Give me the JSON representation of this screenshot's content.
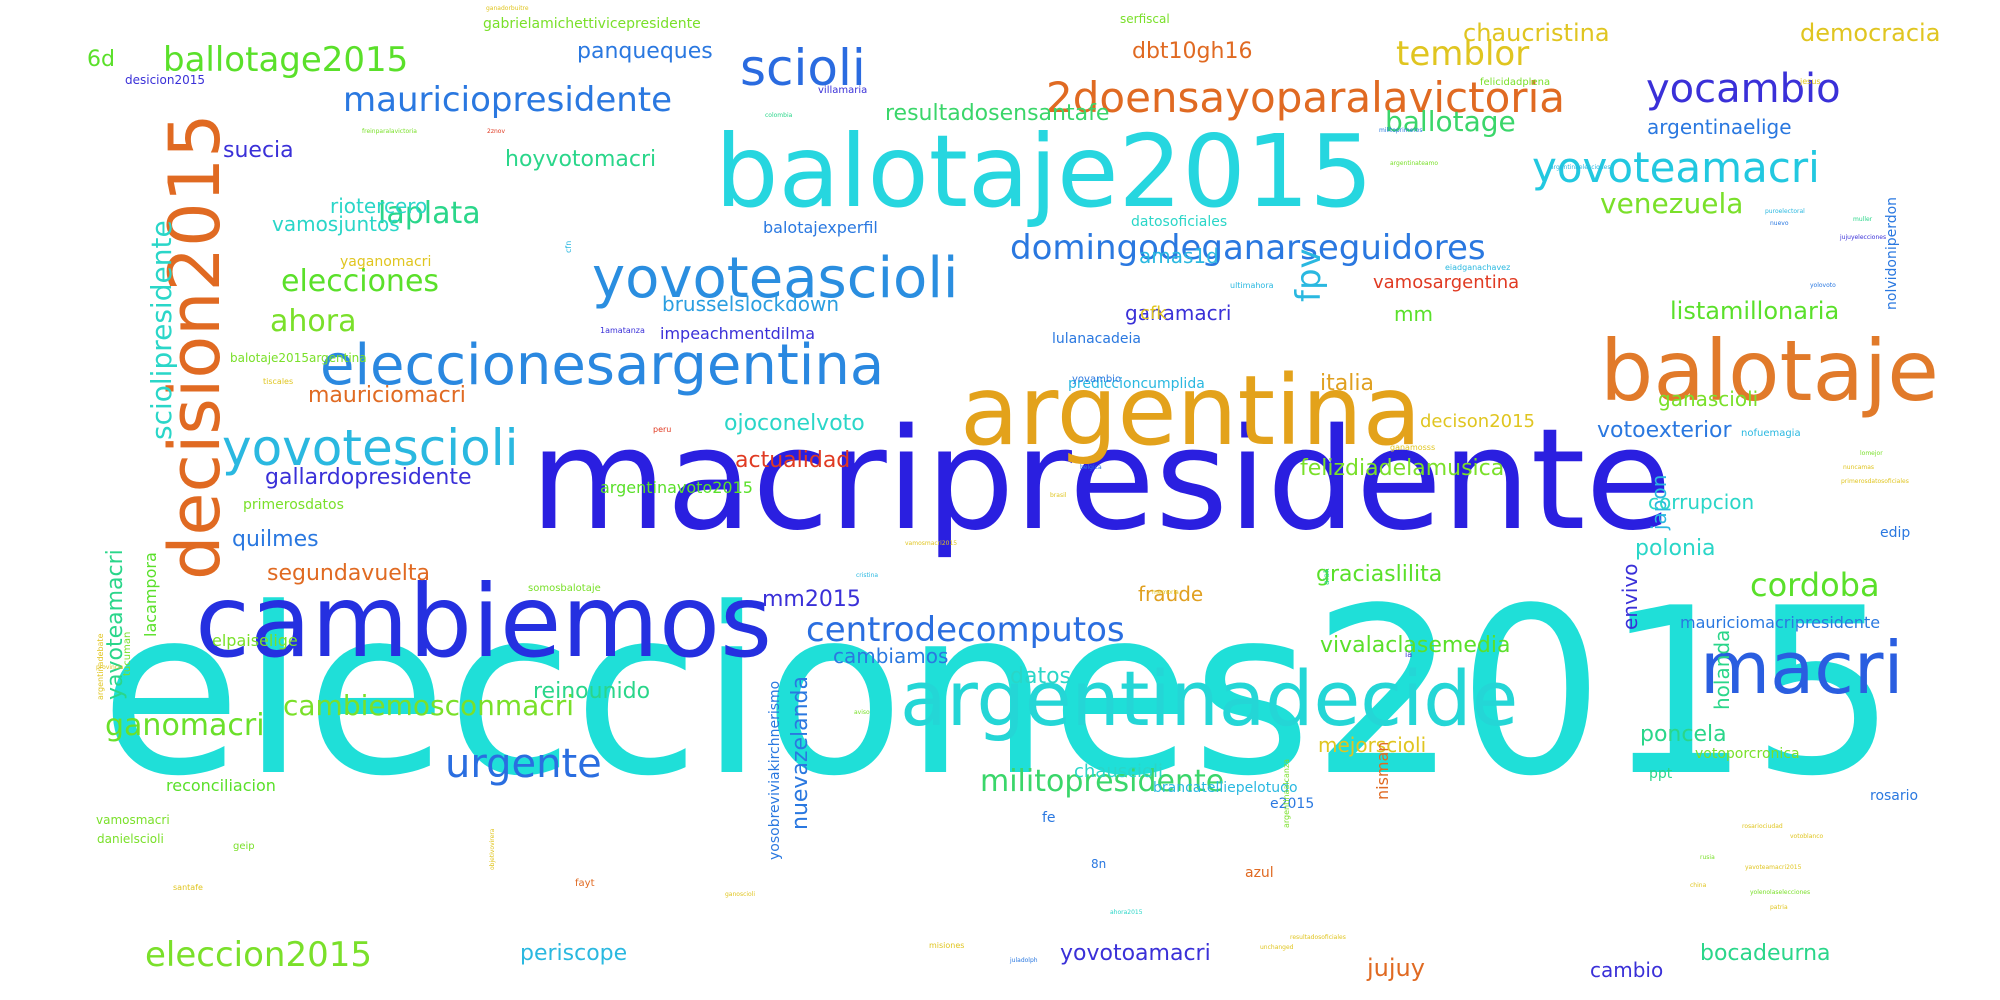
{
  "words": [
    {
      "text": "elecciones2015",
      "color": "#1fdfd8"
    },
    {
      "text": "macripresidente",
      "color": "#2a1fe0"
    },
    {
      "text": "cambiemos",
      "color": "#2530e0"
    },
    {
      "text": "balotaje2015",
      "color": "#26d6df"
    },
    {
      "text": "argentina",
      "color": "#e3a21b"
    },
    {
      "text": "balotaje",
      "color": "#e17a2a"
    },
    {
      "text": "argentinadecide",
      "color": "#24d6d6"
    },
    {
      "text": "decision2015",
      "color": "#e06a22"
    },
    {
      "text": "macri",
      "color": "#2a5ee0"
    },
    {
      "text": "eleccionesargentina",
      "color": "#2a88e0"
    },
    {
      "text": "yovoteascioli",
      "color": "#2a8ee0"
    },
    {
      "text": "scioli",
      "color": "#2a6be0"
    },
    {
      "text": "yovotescioli",
      "color": "#2ab8e0"
    },
    {
      "text": "2doensayoparalavictoria",
      "color": "#e06a22"
    },
    {
      "text": "yovoteamacri",
      "color": "#22c8e0"
    },
    {
      "text": "yocambio",
      "color": "#3a30d8"
    },
    {
      "text": "mauriciopresidente",
      "color": "#2a78e0"
    },
    {
      "text": "ballotage2015",
      "color": "#5ae02a"
    },
    {
      "text": "domingodeganarseguidores",
      "color": "#2a78e0"
    },
    {
      "text": "urgente",
      "color": "#2a6ee0"
    },
    {
      "text": "centrodecomputos",
      "color": "#2a6ee0"
    },
    {
      "text": "temblor",
      "color": "#e0c520"
    },
    {
      "text": "laplata",
      "color": "#2ad68a"
    },
    {
      "text": "elecciones",
      "color": "#5ae02a"
    },
    {
      "text": "ahora",
      "color": "#7ae02a"
    },
    {
      "text": "fpv",
      "color": "#2ab8e0"
    },
    {
      "text": "eleccion2015",
      "color": "#7ae02a"
    },
    {
      "text": "ganomacri",
      "color": "#6ae02a"
    },
    {
      "text": "cambiemosconmacri",
      "color": "#7ae02a"
    },
    {
      "text": "militopresidente",
      "color": "#3ad66a"
    },
    {
      "text": "cordoba",
      "color": "#5ae02a"
    },
    {
      "text": "sciolipresidente",
      "color": "#2ad6c8"
    },
    {
      "text": "venezuela",
      "color": "#7ae02a"
    },
    {
      "text": "ballotage",
      "color": "#3ad66a"
    },
    {
      "text": "listamillonaria",
      "color": "#5ae02a"
    },
    {
      "text": "democracia",
      "color": "#e0c520"
    },
    {
      "text": "chaucristina",
      "color": "#e0c520"
    },
    {
      "text": "panqueques",
      "color": "#2a78e0"
    },
    {
      "text": "dbt10gh16",
      "color": "#e06a22"
    },
    {
      "text": "6d",
      "color": "#5ae02a"
    },
    {
      "text": "yavoteamacri",
      "color": "#2ad68a"
    },
    {
      "text": "suecia",
      "color": "#3a30d8"
    },
    {
      "text": "hoyvotomacri",
      "color": "#2ad68a"
    },
    {
      "text": "resultadosensantafe",
      "color": "#3ad66a"
    },
    {
      "text": "argentinaelige",
      "color": "#2a78e0"
    },
    {
      "text": "vamosjuntos",
      "color": "#2ad6c8"
    },
    {
      "text": "riotercero",
      "color": "#2ad6c8"
    },
    {
      "text": "brusselslockdown",
      "color": "#2a9ee0"
    },
    {
      "text": "amas1d",
      "color": "#2ab8e0"
    },
    {
      "text": "ganamacri",
      "color": "#3a30d8"
    },
    {
      "text": "italia",
      "color": "#e0a020"
    },
    {
      "text": "mauriciomacri",
      "color": "#e06a22"
    },
    {
      "text": "ojoconelvoto",
      "color": "#2ad6c8"
    },
    {
      "text": "actualidad",
      "color": "#e03a22"
    },
    {
      "text": "gallardopresidente",
      "color": "#3a30d8"
    },
    {
      "text": "felizdiadelamusica",
      "color": "#7ae02a"
    },
    {
      "text": "votoexterior",
      "color": "#2a78e0"
    },
    {
      "text": "segundavuelta",
      "color": "#e06a22"
    },
    {
      "text": "quilmes",
      "color": "#2a78e0"
    },
    {
      "text": "mm2015",
      "color": "#3a30d8"
    },
    {
      "text": "polonia",
      "color": "#2ad6c8"
    },
    {
      "text": "graciaslilita",
      "color": "#5ae02a"
    },
    {
      "text": "vivalaclasemedia",
      "color": "#5ae02a"
    },
    {
      "text": "fraude",
      "color": "#e0a020"
    },
    {
      "text": "datos",
      "color": "#2ad6c8"
    },
    {
      "text": "cambiamos",
      "color": "#2a78e0"
    },
    {
      "text": "reinounido",
      "color": "#2ad68a"
    },
    {
      "text": "nuevazelanda",
      "color": "#2a78e0"
    },
    {
      "text": "mejorscioli",
      "color": "#e0c520"
    },
    {
      "text": "poncela",
      "color": "#2ad68a"
    },
    {
      "text": "periscope",
      "color": "#2ab8e0"
    },
    {
      "text": "yovotoamacri",
      "color": "#3a30d8"
    },
    {
      "text": "jujuy",
      "color": "#e06a22"
    },
    {
      "text": "cambio",
      "color": "#3a30d8"
    },
    {
      "text": "bocadeurna",
      "color": "#2ad68a"
    },
    {
      "text": "japon",
      "color": "#2ab8e0"
    },
    {
      "text": "corrupcion",
      "color": "#2ad6c8"
    },
    {
      "text": "envivo",
      "color": "#3a30d8"
    },
    {
      "text": "holanda",
      "color": "#2ad68a"
    },
    {
      "text": "ganascioli",
      "color": "#7ae02a"
    },
    {
      "text": "mm",
      "color": "#5ae02a"
    },
    {
      "text": "cfk",
      "color": "#e0c520"
    },
    {
      "text": "vamosargentina",
      "color": "#e03a22"
    },
    {
      "text": "decison2015",
      "color": "#e0c520"
    },
    {
      "text": "lacampora",
      "color": "#5ae02a"
    },
    {
      "text": "elpaiselige",
      "color": "#7ae02a"
    },
    {
      "text": "reconciliacion",
      "color": "#5ae02a"
    },
    {
      "text": "argentinavoto2015",
      "color": "#5ae02a"
    },
    {
      "text": "primerosdatos",
      "color": "#7ae02a"
    },
    {
      "text": "impeachmentdilma",
      "color": "#3a30d8"
    },
    {
      "text": "lulanacadeia",
      "color": "#2a78e0"
    },
    {
      "text": "yaganomacri",
      "color": "#e0c520"
    },
    {
      "text": "balotajexperfil",
      "color": "#2a78e0"
    },
    {
      "text": "datosoficiales",
      "color": "#2ad6c8"
    },
    {
      "text": "mauriciomacripresidente",
      "color": "#2a78e0"
    },
    {
      "text": "nisman",
      "color": "#e06a22"
    },
    {
      "text": "chauscioli",
      "color": "#2ad6c8"
    },
    {
      "text": "yosobreviviakirchnerismo",
      "color": "#2a78e0"
    },
    {
      "text": "nolvidoniperdon",
      "color": "#2a78e0"
    },
    {
      "text": "gabrielamichettivicepresidente",
      "color": "#7ae02a"
    },
    {
      "text": "ppt",
      "color": "#2ad68a"
    },
    {
      "text": "rosario",
      "color": "#2a78e0"
    },
    {
      "text": "azul",
      "color": "#e06a22"
    },
    {
      "text": "e2015",
      "color": "#2a78e0"
    },
    {
      "text": "prediccioncumplida",
      "color": "#2ab8e0"
    },
    {
      "text": "edip",
      "color": "#2a78e0"
    },
    {
      "text": "votoporcronica",
      "color": "#7ae02a"
    },
    {
      "text": "brancatelliepelotudo",
      "color": "#2ab8e0"
    },
    {
      "text": "desicion2015",
      "color": "#3a30d8"
    },
    {
      "text": "balotaje2015argentina",
      "color": "#7ae02a"
    },
    {
      "text": "vamosmacri",
      "color": "#7ae02a"
    },
    {
      "text": "danielscioli",
      "color": "#7ae02a"
    },
    {
      "text": "tucuman",
      "color": "#7ae02a"
    },
    {
      "text": "fe",
      "color": "#2a78e0"
    },
    {
      "text": "8n",
      "color": "#2a78e0"
    },
    {
      "text": "somosbalotaje",
      "color": "#7ae02a"
    },
    {
      "text": "serfiscal",
      "color": "#7ae02a"
    },
    {
      "text": "felicidadplena",
      "color": "#7ae02a"
    },
    {
      "text": "villamaria",
      "color": "#3a30d8"
    },
    {
      "text": "misiones",
      "color": "#e0c520"
    },
    {
      "text": "santafe",
      "color": "#e0c520"
    },
    {
      "text": "geip",
      "color": "#7ae02a"
    },
    {
      "text": "fayt",
      "color": "#e06a22"
    },
    {
      "text": "1amatanza",
      "color": "#3a30d8"
    },
    {
      "text": "tiscales",
      "color": "#e0c520"
    },
    {
      "text": "cfn",
      "color": "#2ab8e0"
    },
    {
      "text": "yovambio",
      "color": "#2a78e0"
    },
    {
      "text": "nofuemagia",
      "color": "#2ab8e0"
    },
    {
      "text": "ganamosss",
      "color": "#e0c520"
    },
    {
      "text": "argentinaalcanza",
      "color": "#7ae02a"
    },
    {
      "text": "argentinadebate",
      "color": "#e0c520"
    },
    {
      "text": "ultimahora",
      "color": "#2ab8e0"
    },
    {
      "text": "jesus",
      "color": "#e0c520"
    },
    {
      "text": "peru",
      "color": "#e03a22"
    },
    {
      "text": "brasil",
      "color": "#e0c520"
    },
    {
      "text": "belgica",
      "color": "#2a78e0"
    },
    {
      "text": "memoria",
      "color": "#e0c520"
    },
    {
      "text": "ia",
      "color": "#3a30d8"
    },
    {
      "text": "rusia",
      "color": "#7ae02a"
    },
    {
      "text": "china",
      "color": "#e0c520"
    },
    {
      "text": "nuevo",
      "color": "#2a78e0"
    },
    {
      "text": "2znov",
      "color": "#e03a22"
    },
    {
      "text": "ganoscioli",
      "color": "#e0c520"
    },
    {
      "text": "objetivovirera",
      "color": "#e0c520"
    },
    {
      "text": "freinparalavictoria",
      "color": "#7ae02a"
    },
    {
      "text": "argentinateamo",
      "color": "#7ae02a"
    },
    {
      "text": "puroelectoral",
      "color": "#2ab8e0"
    },
    {
      "text": "primerosdatosoficiales",
      "color": "#e0c520"
    },
    {
      "text": "yolenolaselecciones",
      "color": "#7ae02a"
    },
    {
      "text": "ganadorbuitre",
      "color": "#e0c520"
    },
    {
      "text": "muller",
      "color": "#2ad68a"
    },
    {
      "text": "colombia",
      "color": "#2ad68a"
    },
    {
      "text": "argentinaelecciones",
      "color": "#2ab8e0"
    },
    {
      "text": "eiadganachavez",
      "color": "#2ab8e0"
    },
    {
      "text": "militoprimeros",
      "color": "#2a78e0"
    },
    {
      "text": "jujuyelecciones",
      "color": "#3a30d8"
    },
    {
      "text": "yolovoto",
      "color": "#2a78e0"
    },
    {
      "text": "vamosmacri2015",
      "color": "#e0c520"
    },
    {
      "text": "resultadosoficiales",
      "color": "#e0c520"
    },
    {
      "text": "unchanged",
      "color": "#e0c520"
    },
    {
      "text": "ahora2015",
      "color": "#2ad6c8"
    },
    {
      "text": "juladolph",
      "color": "#2a78e0"
    },
    {
      "text": "alak",
      "color": "#2ad68a"
    },
    {
      "text": "cristina",
      "color": "#2ab8e0"
    },
    {
      "text": "aviso",
      "color": "#7ae02a"
    },
    {
      "text": "provincia",
      "color": "#e0c520"
    },
    {
      "text": "rosariociudad",
      "color": "#e0c520"
    },
    {
      "text": "votoblanco",
      "color": "#e0c520"
    },
    {
      "text": "yavoteamacri2015",
      "color": "#e0c520"
    },
    {
      "text": "nuncamas",
      "color": "#e0c520"
    },
    {
      "text": "lomejor",
      "color": "#7ae02a"
    },
    {
      "text": "patria",
      "color": "#e0c520"
    }
  ]
}
